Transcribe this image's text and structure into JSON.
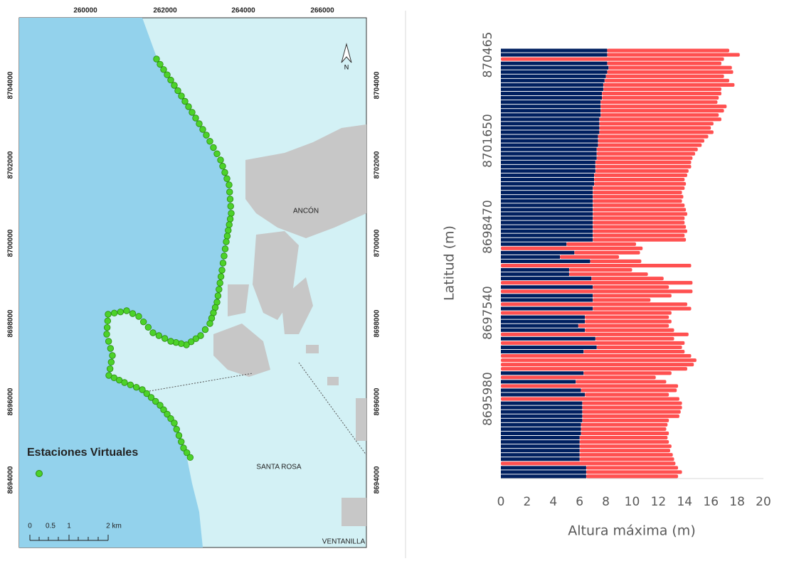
{
  "map": {
    "x_labels": [
      "260000",
      "262000",
      "264000",
      "266000"
    ],
    "y_labels": [
      "8704000",
      "8702000",
      "8700000",
      "8698000",
      "8696000",
      "8694000"
    ],
    "places": [
      "ANCÓN",
      "SANTA ROSA",
      "VENTANILLA"
    ],
    "legend": "Estaciones Virtuales",
    "scale": [
      "0",
      "0.5",
      "1",
      "2 km"
    ],
    "north": "N"
  },
  "chart_data": {
    "type": "stacked-bar-horizontal",
    "x_label": "Altura máxima (m)",
    "y_label": "Latitud (m)",
    "categories": [
      null,
      "870465",
      null,
      null,
      null,
      null,
      null,
      null,
      null,
      null,
      null,
      null,
      null,
      null,
      null,
      null,
      null,
      null,
      null,
      null,
      null,
      "8701650",
      null,
      null,
      null,
      null,
      null,
      null,
      null,
      null,
      null,
      null,
      null,
      null,
      null,
      null,
      null,
      null,
      null,
      null,
      null,
      "8698470",
      null,
      null,
      null,
      null,
      null,
      null,
      null,
      null,
      null,
      null,
      null,
      null,
      null,
      null,
      null,
      null,
      null,
      null,
      null,
      "8697540",
      null,
      null,
      null,
      null,
      null,
      null,
      null,
      null,
      null,
      null,
      null,
      null,
      null,
      null,
      null,
      null,
      null,
      null,
      null,
      "8695980",
      null,
      null,
      null,
      null,
      null,
      null,
      null,
      null,
      null,
      null,
      null,
      null,
      null,
      null,
      null,
      null,
      null,
      null
    ],
    "series": [
      {
        "color": "#002060",
        "values": [
          8.1,
          8.1,
          0,
          8.1,
          8.2,
          8.1,
          8.0,
          7.9,
          7.8,
          7.8,
          7.7,
          7.7,
          7.6,
          7.6,
          7.6,
          7.6,
          7.5,
          7.5,
          7.5,
          7.5,
          7.4,
          7.4,
          7.4,
          7.3,
          7.3,
          7.3,
          7.2,
          7.2,
          7.2,
          7.1,
          7.1,
          7.1,
          7.0,
          7.0,
          7.0,
          7.0,
          7.0,
          7.0,
          7.0,
          7.0,
          7.0,
          7.0,
          7.0,
          7.0,
          7.0,
          5.0,
          0,
          5.6,
          4.5,
          6.8,
          0,
          5.2,
          5.2,
          6.9,
          0,
          7.0,
          0,
          7.0,
          7.0,
          0,
          7.0,
          0,
          6.4,
          6.4,
          5.9,
          6.4,
          0,
          7.2,
          0,
          7.3,
          6.3,
          0,
          0,
          0,
          0,
          6.3,
          0,
          5.7,
          0,
          6.1,
          6.4,
          0,
          6.2,
          6.2,
          6.2,
          6.2,
          6.2,
          6.1,
          6.1,
          6.1,
          6.0,
          6.0,
          6.0,
          6.0,
          6.0,
          6.0,
          0,
          6.5,
          6.5,
          6.5
        ]
      },
      {
        "color": "#ff5050",
        "values": [
          9.3,
          10.1,
          17.0,
          8.7,
          9.4,
          9.6,
          9.0,
          9.5,
          10.0,
          9.0,
          9.1,
          8.9,
          8.9,
          9.6,
          9.4,
          9.0,
          9.3,
          8.7,
          8.5,
          8.7,
          8.4,
          8.1,
          7.9,
          7.7,
          7.5,
          7.3,
          7.3,
          7.3,
          7.1,
          7.1,
          6.9,
          7.0,
          7.0,
          6.8,
          6.9,
          6.8,
          7.0,
          7.1,
          7.2,
          7.0,
          7.0,
          7.1,
          7.2,
          7.0,
          7.1,
          5.3,
          10.8,
          5.0,
          4.5,
          3.9,
          14.5,
          4.8,
          6.0,
          5.5,
          14.6,
          5.8,
          14.6,
          6.0,
          4.4,
          14.2,
          7.5,
          13.0,
          6.4,
          6.6,
          6.9,
          6.8,
          14.3,
          6.0,
          14.0,
          6.5,
          7.7,
          14.5,
          14.9,
          14.7,
          14.2,
          6.7,
          11.8,
          6.9,
          13.5,
          7.3,
          6.4,
          13.6,
          7.6,
          7.6,
          7.5,
          7.4,
          6.6,
          6.6,
          6.5,
          6.7,
          6.7,
          6.8,
          7.0,
          6.9,
          7.1,
          7.2,
          13.3,
          7.0,
          7.3,
          7.0
        ]
      }
    ],
    "xlim": [
      0,
      20
    ],
    "xticks": [
      0,
      2,
      4,
      6,
      8,
      10,
      12,
      14,
      16,
      18,
      20
    ]
  }
}
